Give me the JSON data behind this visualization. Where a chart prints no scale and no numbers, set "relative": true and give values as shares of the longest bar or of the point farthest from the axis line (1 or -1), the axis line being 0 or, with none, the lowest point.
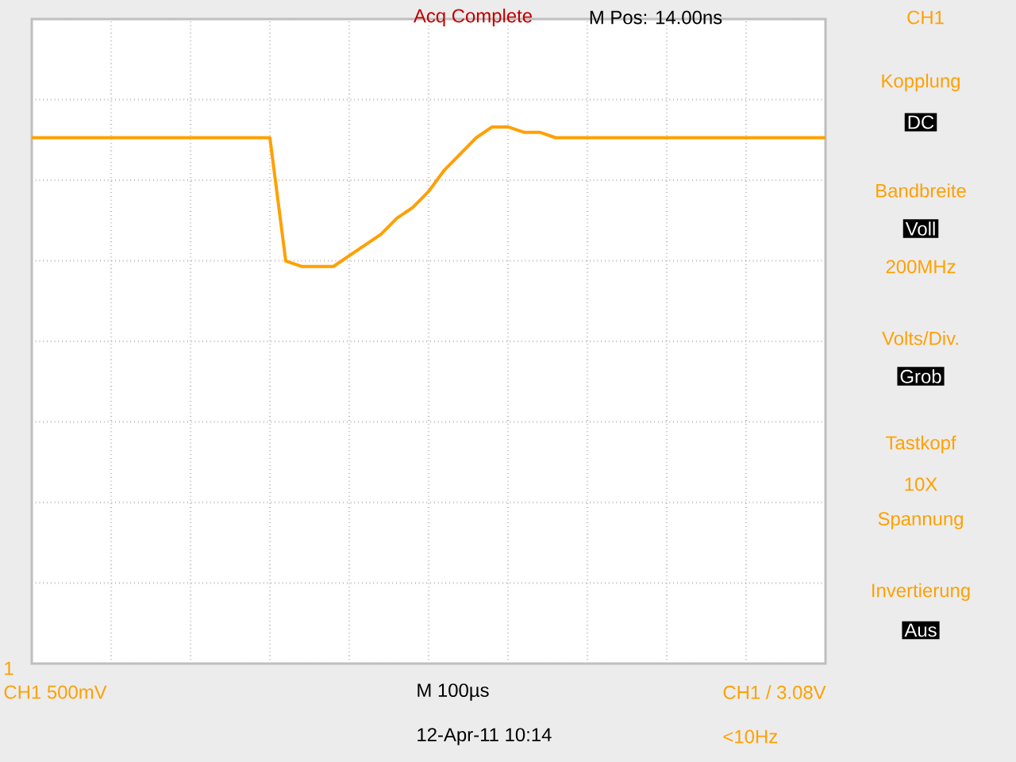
{
  "chart_data": {
    "type": "line",
    "relative": true,
    "color": "#ffa000",
    "grid": true,
    "categories": [
      null,
      null,
      null,
      null,
      null,
      null,
      null,
      null,
      null,
      null,
      null,
      null,
      null,
      null,
      null,
      null,
      null,
      null,
      null,
      null,
      null,
      null,
      null,
      null,
      null,
      null,
      null,
      null,
      null,
      null,
      null,
      null,
      null,
      null,
      null,
      null,
      null,
      null,
      null,
      null,
      null,
      null,
      null,
      null,
      null,
      null,
      null,
      null,
      null,
      null,
      null
    ],
    "values": [
      0.98,
      0.98,
      0.98,
      0.98,
      0.98,
      0.98,
      0.98,
      0.98,
      0.98,
      0.98,
      0.98,
      0.98,
      0.98,
      0.98,
      0.98,
      0.98,
      0.75,
      0.74,
      0.74,
      0.74,
      0.76,
      0.78,
      0.8,
      0.83,
      0.85,
      0.88,
      0.92,
      0.95,
      0.98,
      1,
      1,
      0.99,
      0.99,
      0.98,
      0.98,
      0.98,
      0.98,
      0.98,
      0.98,
      0.98,
      0.98,
      0.98,
      0.98,
      0.98,
      0.98,
      0.98,
      0.98,
      0.98,
      0.98,
      0.98,
      0.98
    ],
    "annotations": [
      "Acq Complete",
      "M Pos: 14.00ns",
      "CH1",
      "Kopplung",
      "DC",
      "Bandbreite",
      "Voll",
      "200MHz",
      "Volts/Div.",
      "Grob",
      "Tastkopf",
      "10X",
      "Spannung",
      "Invertierung",
      "Aus",
      "CH1  500mV",
      "M 100µs",
      "CH1 / 3.08V",
      "12-Apr-11 10:14",
      "<10Hz",
      "1"
    ]
  }
}
